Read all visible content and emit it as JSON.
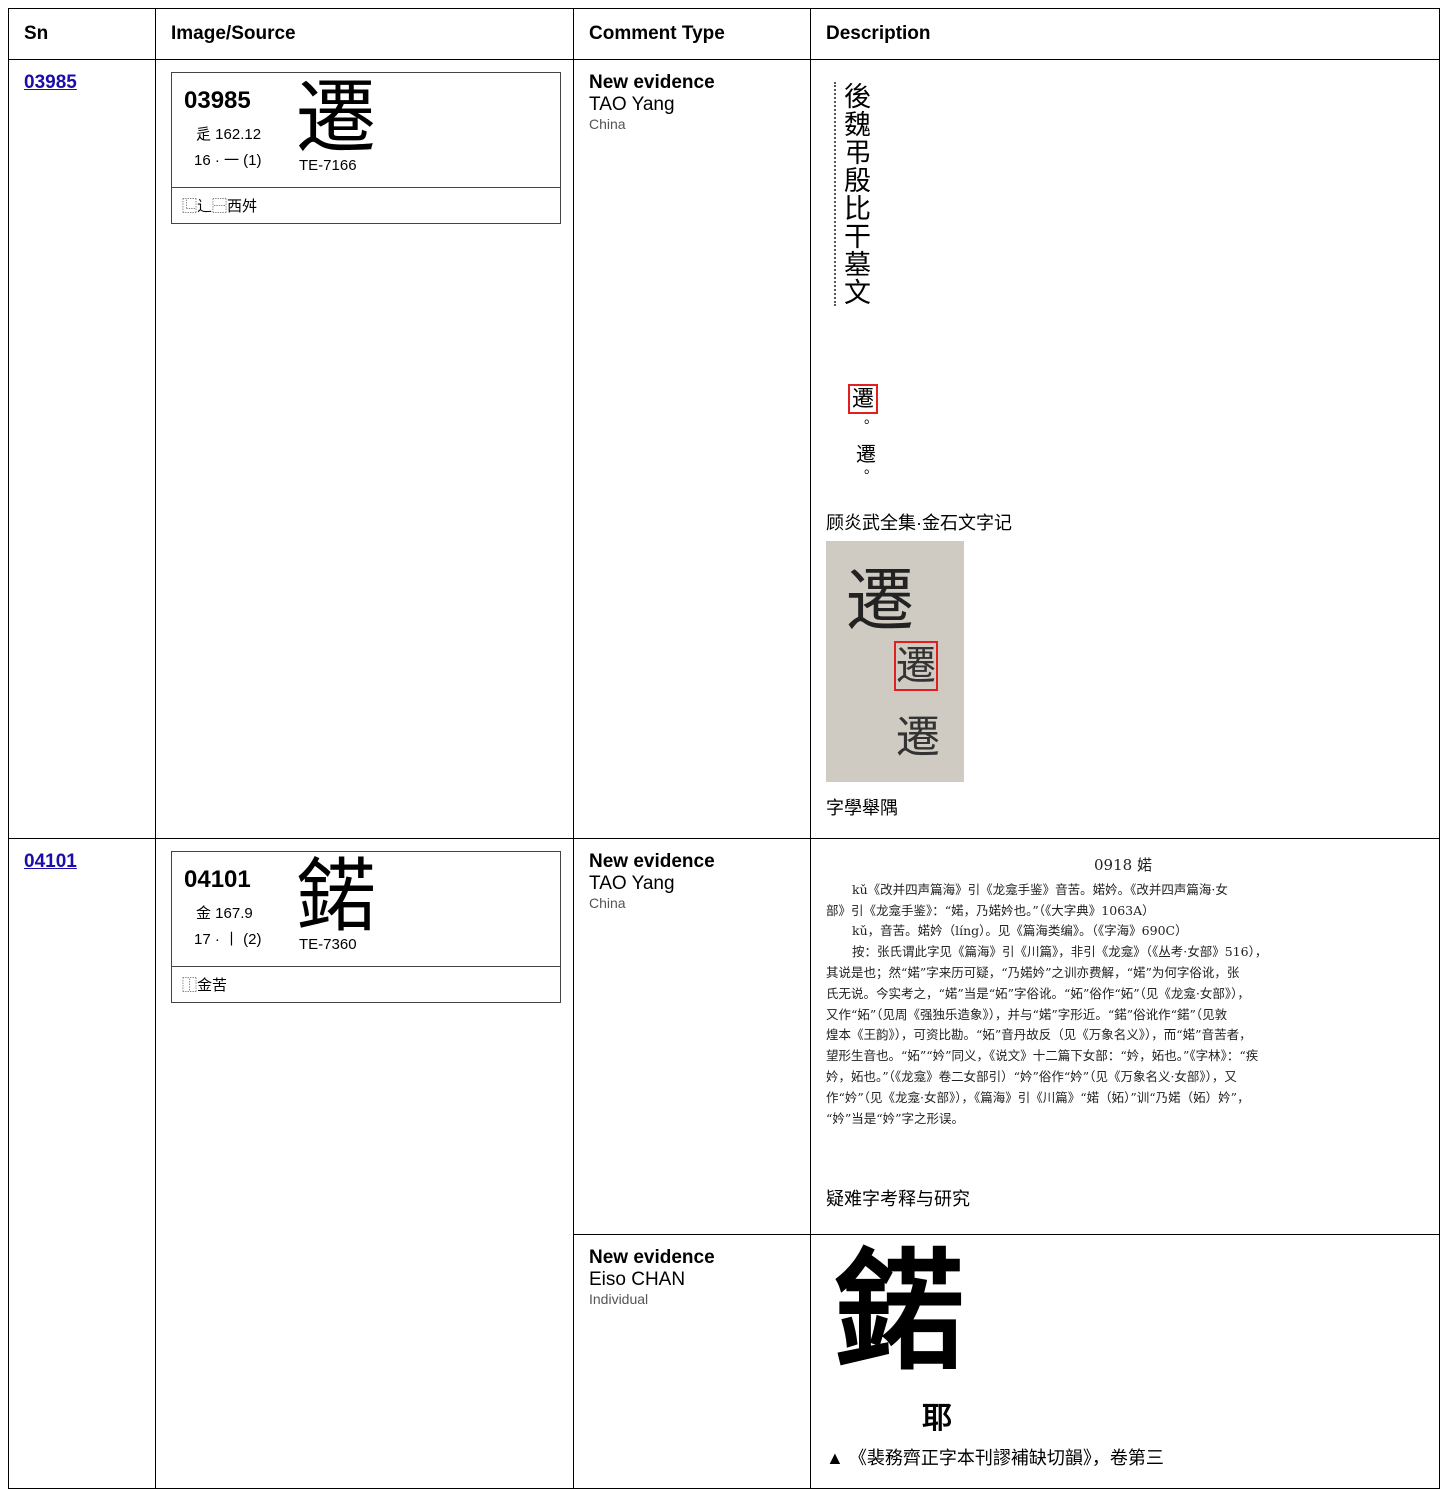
{
  "header": {
    "columns": [
      "Sn",
      "Image/Source",
      "Comment Type",
      "Description"
    ]
  },
  "rows": [
    {
      "sn": "03985",
      "glyph": {
        "code": "03985",
        "radical": "辵 162.12",
        "strokes": "16 · 一 (1)",
        "char": "遷",
        "source": "TE-7166",
        "ids": "⿺辶⿱西舛"
      },
      "comments": [
        {
          "type": "New evidence",
          "name": "TAO Yang",
          "affiliation": "China",
          "evidence": [
            {
              "image": {
                "texts": [
                  "後魏弔殷比干墓文",
                  "遷",
                  "。",
                  "遷",
                  "。"
                ]
              },
              "caption": "顾炎武全集·金石文字记"
            },
            {
              "image": {
                "texts": [
                  "遷",
                  "遷",
                  "遷"
                ]
              },
              "caption": "字學舉隅"
            }
          ]
        }
      ]
    },
    {
      "sn": "04101",
      "glyph": {
        "code": "04101",
        "radical": "金 167.9",
        "strokes": "17 · 丨 (2)",
        "char": "鍩",
        "source": "TE-7360",
        "ids": "⿰金苦"
      },
      "comments": [
        {
          "type": "New evidence",
          "name": "TAO Yang",
          "affiliation": "China",
          "evidence": [
            {
              "image": {
                "texts": [
                  "0918 婼",
                  "kǔ《改并四声篇海》引《龙龛手鉴》音苦。婼妗。《改并四声篇海·女",
                  "部》引《龙龛手鉴》：“婼，乃婼妗也。”（《大字典》1063A）",
                  "kǔ，音苦。婼妗（líng）。见《篇海类编》。（《字海》690C）",
                  "按：张氏谓此字见《篇海》引《川篇》，非引《龙龛》（《丛考·女部》516），",
                  "其说是也；然“婼”字来历可疑，“乃婼妗”之训亦费解，“婼”为何字俗讹，张",
                  "氏无说。今实考之，“婼”当是“妬”字俗讹。“妬”俗作“妬”（见《龙龛·女部》），",
                  "又作“妬”（见周《强独乐造象》），并与“婼”字形近。“鍩”俗讹作“鍩”（见敦",
                  "煌本《王韵》），可资比勘。“妬”音丹故反（见《万象名义》），而“婼”音苦者，",
                  "望形生音也。“妬”“妗”同义，《说文》十二篇下女部：“妗，妬也。”《字林》：“疾",
                  "妗，妬也。”（《龙龛》卷二女部引）“妗”俗作“妗”（见《万象名义·女部》），又",
                  "作“妗”（见《龙龛·女部》），《篇海》引《川篇》“婼（妬）”训“乃婼（妬）妗”，",
                  "“妗”当是“妗”字之形误。"
                ]
              },
              "caption": "疑难字考释与研究"
            }
          ]
        },
        {
          "type": "New evidence",
          "name": "Eiso CHAN",
          "affiliation": "Individual",
          "evidence": [
            {
              "image": {
                "texts": [
                  "鍩",
                  "耶"
                ]
              },
              "caption": "▲ 《裴務齊正字本刊謬補缺切韻》，卷第三"
            }
          ]
        }
      ]
    }
  ]
}
